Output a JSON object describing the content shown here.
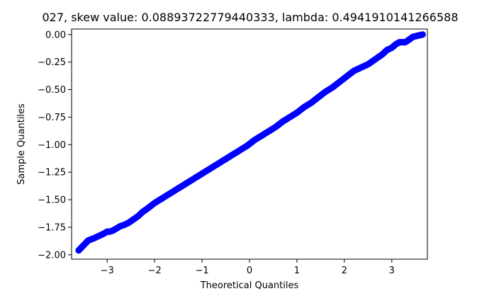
{
  "chart_data": {
    "type": "scatter",
    "title": "027, skew value: 0.08893722779440333, lambda: 0.4941910141266588",
    "xlabel": "Theoretical Quantiles",
    "ylabel": "Sample Quantiles",
    "xlim": [
      -3.75,
      3.75
    ],
    "ylim": [
      -2.04,
      0.05
    ],
    "xticks": [
      -3,
      -2,
      -1,
      0,
      1,
      2,
      3
    ],
    "xtick_labels": [
      "−3",
      "−2",
      "−1",
      "0",
      "1",
      "2",
      "3"
    ],
    "yticks": [
      0.0,
      -0.25,
      -0.5,
      -0.75,
      -1.0,
      -1.25,
      -1.5,
      -1.75,
      -2.0
    ],
    "ytick_labels": [
      "0.00",
      "−0.25",
      "−0.50",
      "−0.75",
      "−1.00",
      "−1.25",
      "−1.50",
      "−1.75",
      "−2.00"
    ],
    "grid": false,
    "marker_color": "#0000ff",
    "points": [
      [
        -3.6,
        -1.96
      ],
      [
        -3.4,
        -1.87
      ],
      [
        -3.28,
        -1.85
      ],
      [
        -3.18,
        -1.83
      ],
      [
        -3.08,
        -1.81
      ],
      [
        -3.0,
        -1.79
      ],
      [
        -2.95,
        -1.79
      ],
      [
        -2.88,
        -1.78
      ],
      [
        -2.8,
        -1.76
      ],
      [
        -2.72,
        -1.74
      ],
      [
        -2.65,
        -1.73
      ],
      [
        -2.55,
        -1.71
      ],
      [
        -2.45,
        -1.68
      ],
      [
        -2.35,
        -1.65
      ],
      [
        -2.25,
        -1.61
      ],
      [
        -2.15,
        -1.58
      ],
      [
        -2.0,
        -1.53
      ],
      [
        -1.85,
        -1.49
      ],
      [
        -1.7,
        -1.45
      ],
      [
        -1.55,
        -1.41
      ],
      [
        -1.4,
        -1.37
      ],
      [
        -1.25,
        -1.33
      ],
      [
        -1.1,
        -1.29
      ],
      [
        -0.95,
        -1.25
      ],
      [
        -0.8,
        -1.21
      ],
      [
        -0.65,
        -1.17
      ],
      [
        -0.5,
        -1.13
      ],
      [
        -0.35,
        -1.09
      ],
      [
        -0.2,
        -1.05
      ],
      [
        -0.05,
        -1.01
      ],
      [
        0.1,
        -0.96
      ],
      [
        0.25,
        -0.92
      ],
      [
        0.4,
        -0.88
      ],
      [
        0.55,
        -0.84
      ],
      [
        0.7,
        -0.79
      ],
      [
        0.85,
        -0.75
      ],
      [
        1.0,
        -0.71
      ],
      [
        1.15,
        -0.66
      ],
      [
        1.3,
        -0.62
      ],
      [
        1.45,
        -0.57
      ],
      [
        1.6,
        -0.52
      ],
      [
        1.75,
        -0.48
      ],
      [
        1.9,
        -0.43
      ],
      [
        2.05,
        -0.38
      ],
      [
        2.2,
        -0.33
      ],
      [
        2.35,
        -0.3
      ],
      [
        2.5,
        -0.27
      ],
      [
        2.6,
        -0.24
      ],
      [
        2.7,
        -0.21
      ],
      [
        2.8,
        -0.18
      ],
      [
        2.9,
        -0.14
      ],
      [
        3.0,
        -0.12
      ],
      [
        3.08,
        -0.09
      ],
      [
        3.16,
        -0.07
      ],
      [
        3.28,
        -0.07
      ],
      [
        3.32,
        -0.06
      ],
      [
        3.45,
        -0.02
      ],
      [
        3.65,
        0.0
      ]
    ]
  }
}
